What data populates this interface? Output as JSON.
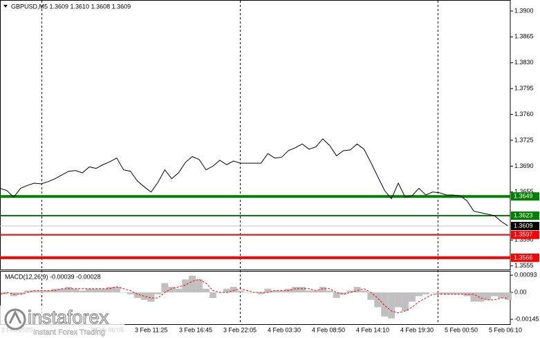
{
  "chart_data": [
    {
      "type": "line",
      "title": "GBPUSD,M5  1.3609 1.3610 1.3608 1.3609",
      "color": "#000000",
      "values": [
        1.366,
        1.3657,
        1.3648,
        1.366,
        1.3664,
        1.3667,
        1.3666,
        1.3669,
        1.3673,
        1.3678,
        1.3683,
        1.3684,
        1.3681,
        1.3689,
        1.3687,
        1.3692,
        1.3696,
        1.3701,
        1.3685,
        1.3683,
        1.367,
        1.3662,
        1.3655,
        1.3668,
        1.3685,
        1.3673,
        1.3681,
        1.3695,
        1.3703,
        1.3699,
        1.3685,
        1.369,
        1.3698,
        1.3692,
        1.3697,
        1.3694,
        1.3694,
        1.3694,
        1.3694,
        1.3707,
        1.3701,
        1.3702,
        1.3711,
        1.3715,
        1.372,
        1.3713,
        1.3716,
        1.3727,
        1.3718,
        1.3704,
        1.3711,
        1.3712,
        1.372,
        1.3713,
        1.3695,
        1.3676,
        1.3657,
        1.3646,
        1.3667,
        1.3648,
        1.365,
        1.366,
        1.3651,
        1.3655,
        1.3654,
        1.3651,
        1.3651,
        1.365,
        1.3643,
        1.3629,
        1.3627,
        1.3625,
        1.3623,
        1.3615,
        1.3609
      ],
      "ylim": [
        1.355,
        1.3914
      ],
      "yticks": [
        {
          "value": 1.39,
          "label": "1.3900"
        },
        1.3865,
        {
          "value": 1.383,
          "label": "1.3830"
        },
        1.3795,
        {
          "value": 1.376,
          "label": "1.3760"
        },
        1.3725,
        {
          "value": 1.369,
          "label": "1.3690"
        },
        1.3655,
        {
          "value": 1.359,
          "label": "1.3590"
        },
        1.3555
      ],
      "levels": [
        {
          "value": 1.3649,
          "color": "#008000",
          "thick": true
        },
        {
          "value": 1.3623,
          "color": "#008000",
          "thick": false
        },
        {
          "value": 1.3597,
          "color": "#ff0000",
          "thick": false
        },
        {
          "value": 1.3566,
          "color": "#ff0000",
          "thick": true
        }
      ],
      "last": 1.3609
    },
    {
      "type": "macd",
      "title": "MACD(12,26,9) -0.00039 -0.00028",
      "color": "#c0c0c0",
      "signal_color": "#ff0000",
      "values": [
        -0.0001,
        0,
        -0.0002,
        -0.0001,
        0.0001,
        0.0001,
        0.0001,
        0.0001,
        0.0002,
        0.0002,
        0.0003,
        0.0002,
        0.0001,
        0.0002,
        0.0002,
        0.0002,
        0.0003,
        0.0003,
        0,
        -0.0001,
        -0.0003,
        -0.0004,
        -0.0005,
        -0.0001,
        0.0005,
        0.0003,
        0.0002,
        0.0007,
        0.0009,
        0.0007,
        0.0002,
        -0.0003,
        0,
        0.0002,
        0.0003,
        0.0001,
        0,
        0,
        -0.0001,
        0.0002,
        0.0001,
        0.0001,
        0.0002,
        0.0003,
        0.0003,
        0.0001,
        0.0001,
        0.0003,
        0.0001,
        -0.0003,
        -0.0001,
        0.0001,
        0.0003,
        0.0001,
        -0.0004,
        -0.0008,
        -0.0013,
        -0.0014,
        -0.0008,
        -0.001,
        -0.0005,
        -0.0002,
        -0.0001,
        0,
        -0.0001,
        -0.0001,
        -0.0001,
        -0.0001,
        -0.0002,
        -0.0005,
        -0.0005,
        -0.0004,
        -0.0002,
        -0.0003,
        -0.0004
      ],
      "signal": [
        -0.0001,
        0,
        -0.0001,
        -0.0001,
        0,
        0.0001,
        0.0001,
        0.0001,
        0.0001,
        0.0002,
        0.0002,
        0.0002,
        0.0002,
        0.0002,
        0.0002,
        0.0002,
        0.0002,
        0.0003,
        0.0002,
        0.0001,
        -0.0001,
        -0.0002,
        -0.0003,
        -0.0003,
        0,
        0.0002,
        0.0003,
        0.0004,
        0.0006,
        0.0007,
        0.0005,
        0.0001,
        0,
        0,
        0.0001,
        0.0002,
        0.0001,
        0,
        0,
        0,
        0.0001,
        0.0001,
        0.0001,
        0.0002,
        0.0002,
        0.0002,
        0.0001,
        0.0002,
        0.0002,
        0,
        -0.0001,
        0,
        0.0001,
        0.0002,
        0,
        -0.0003,
        -0.0007,
        -0.001,
        -0.0011,
        -0.001,
        -0.0008,
        -0.0005,
        -0.0003,
        -0.0001,
        -0.0001,
        -0.0001,
        -0.0001,
        -0.0001,
        -0.0001,
        -0.0001,
        -0.0003,
        -0.0004,
        -0.0004,
        -0.0003,
        -0.0003
      ],
      "ylim": [
        -0.00171,
        0.00112
      ],
      "yticks": [
        0.00093,
        {
          "value": 0,
          "label": "0.00"
        },
        -0.00145
      ],
      "time_labels": [
        "2 Feb 2025",
        "3 Feb 06:05",
        "3 Feb 11:25",
        "3 Feb 16:45",
        "3 Feb 22:05",
        "4 Feb 03:30",
        "4 Feb 08:50",
        "4 Feb 14:10",
        "4 Feb 19:30",
        "5 Feb 00:50",
        "5 Feb 06:10"
      ]
    }
  ],
  "watermark": {
    "brand": "instaforex",
    "tagline": "Instant Forex Trading"
  }
}
